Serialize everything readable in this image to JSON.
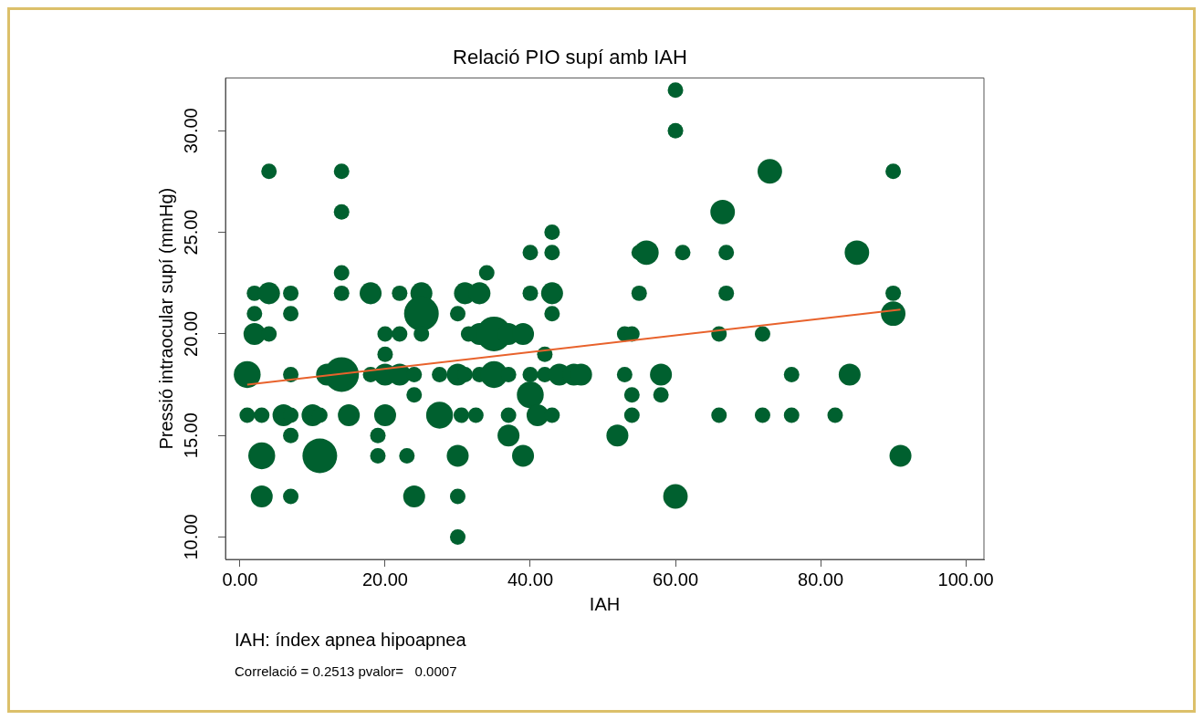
{
  "chart_data": {
    "type": "bubble",
    "title": "Relació PIO supí amb IAH",
    "xlabel": "IAH",
    "ylabel": "Pressió intraocular supí (mmHg)",
    "annotations": [
      "IAH: índex apnea hipoapnea",
      "Correlació = 0.2513 pvalor=   0.0007"
    ],
    "xlim": [
      -2,
      102.5
    ],
    "ylim": [
      8.9,
      32.6
    ],
    "xticks": [
      {
        "value": 0,
        "label": "0.00"
      },
      {
        "value": 20,
        "label": "20.00"
      },
      {
        "value": 40,
        "label": "40.00"
      },
      {
        "value": 60,
        "label": "60.00"
      },
      {
        "value": 80,
        "label": "80.00"
      },
      {
        "value": 100,
        "label": "100.00"
      }
    ],
    "yticks": [
      {
        "value": 10,
        "label": "10.00"
      },
      {
        "value": 15,
        "label": "15.00"
      },
      {
        "value": 20,
        "label": "20.00"
      },
      {
        "value": 25,
        "label": "25.00"
      },
      {
        "value": 30,
        "label": "30.00"
      }
    ],
    "grid": false,
    "legend": false,
    "series": [
      {
        "type": "bubble",
        "color": "#00602f",
        "x": [
          4,
          14,
          73,
          90,
          60,
          60,
          14,
          66.5,
          43,
          40,
          43,
          55,
          56,
          61,
          67,
          85,
          14,
          34,
          2,
          4,
          7,
          14,
          18,
          22,
          25,
          31,
          33,
          40,
          43,
          55,
          67,
          90,
          2,
          7,
          25,
          30,
          43,
          90,
          2,
          4,
          20,
          22,
          25,
          31.5,
          33,
          35,
          37,
          39,
          53,
          54,
          66,
          72,
          20,
          42,
          1,
          7,
          12,
          14,
          18,
          20,
          22,
          24,
          27.5,
          30,
          31,
          33,
          35,
          37,
          40,
          42,
          44,
          46,
          47,
          53,
          58,
          76,
          84,
          24,
          40,
          54,
          58,
          1,
          3,
          6,
          7,
          10,
          11,
          15,
          20,
          27.5,
          30.5,
          32.5,
          37,
          41,
          43,
          54,
          66,
          72,
          76,
          82,
          7,
          19,
          37,
          52,
          3,
          11,
          19,
          23,
          30,
          39,
          91,
          3,
          7,
          24,
          30,
          60,
          30
        ],
        "values": [
          28,
          28,
          28,
          28,
          32,
          30,
          26,
          26,
          25,
          24,
          24,
          24,
          24,
          24,
          24,
          24,
          23,
          23,
          22,
          22,
          22,
          22,
          22,
          22,
          22,
          22,
          22,
          22,
          22,
          22,
          22,
          22,
          21,
          21,
          21,
          21,
          21,
          21,
          20,
          20,
          20,
          20,
          20,
          20,
          20,
          20,
          20,
          20,
          20,
          20,
          20,
          20,
          19,
          19,
          18,
          18,
          18,
          18,
          18,
          18,
          18,
          18,
          18,
          18,
          18,
          18,
          18,
          18,
          18,
          18,
          18,
          18,
          18,
          18,
          18,
          18,
          18,
          17,
          17,
          17,
          17,
          16,
          16,
          16,
          16,
          16,
          16,
          16,
          16,
          16,
          16,
          16,
          16,
          16,
          16,
          16,
          16,
          16,
          16,
          16,
          15,
          15,
          15,
          15,
          14,
          14,
          14,
          14,
          14,
          14,
          14,
          12,
          12,
          12,
          12,
          12,
          10
        ],
        "sizes": [
          0.2,
          0.2,
          0.5,
          0.2,
          0.2,
          0.2,
          0.2,
          0.5,
          0.2,
          0.2,
          0.2,
          0.2,
          0.5,
          0.2,
          0.2,
          0.5,
          0.2,
          0.2,
          0.2,
          0.4,
          0.2,
          0.2,
          0.4,
          0.2,
          0.4,
          0.4,
          0.4,
          0.2,
          0.4,
          0.2,
          0.2,
          0.2,
          0.2,
          0.2,
          1,
          0.2,
          0.2,
          0.5,
          0.4,
          0.2,
          0.2,
          0.2,
          0.2,
          0.2,
          0.4,
          1,
          0.4,
          0.4,
          0.2,
          0.2,
          0.2,
          0.2,
          0.2,
          0.2,
          0.6,
          0.2,
          0.4,
          1,
          0.2,
          0.4,
          0.4,
          0.2,
          0.2,
          0.4,
          0.2,
          0.2,
          0.6,
          0.2,
          0.2,
          0.2,
          0.4,
          0.4,
          0.4,
          0.2,
          0.4,
          0.2,
          0.4,
          0.2,
          0.6,
          0.2,
          0.2,
          0.2,
          0.2,
          0.4,
          0.2,
          0.4,
          0.2,
          0.4,
          0.4,
          0.6,
          0.2,
          0.2,
          0.2,
          0.4,
          0.2,
          0.2,
          0.2,
          0.2,
          0.2,
          0.2,
          0.2,
          0.2,
          0.4,
          0.4,
          0.6,
          1,
          0.2,
          0.2,
          0.4,
          0.4,
          0.4,
          0.4,
          0.2,
          0.4,
          0.2,
          0.5,
          0.2
        ]
      },
      {
        "type": "line",
        "color": "#e8622c",
        "x": [
          1,
          91
        ],
        "values": [
          17.5,
          21.2
        ]
      }
    ]
  }
}
